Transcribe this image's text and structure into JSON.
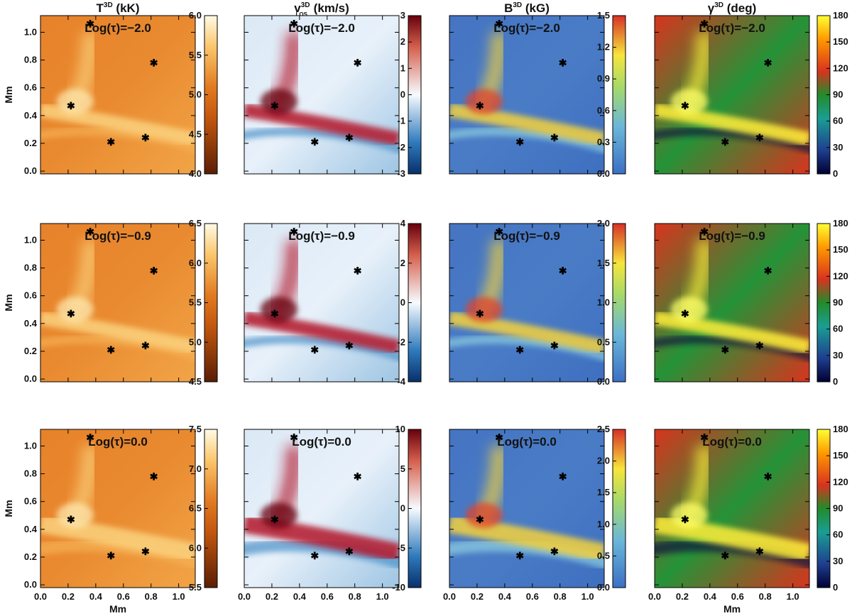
{
  "chart_data": {
    "type": "heatmap",
    "columns": [
      {
        "title_main": "T",
        "title_sup": "3D",
        "title_unit": "(kK)",
        "cmap": "temp"
      },
      {
        "title_main": "v",
        "title_sup": "3D",
        "title_sub": "LOS",
        "title_unit": "(km/s)",
        "cmap": "velocity"
      },
      {
        "title_main": "B",
        "title_sup": "3D",
        "title_unit": "(kG)",
        "cmap": "field"
      },
      {
        "title_main": "γ",
        "title_sup": "3D",
        "title_unit": "(deg)",
        "cmap": "incl"
      }
    ],
    "rows": [
      {
        "tau_label": "Log(τ)=−2.0",
        "colorbars": [
          {
            "range": [
              4.0,
              6.0
            ],
            "ticks": [
              "4.0",
              "4.5",
              "5.0",
              "5.5",
              "6.0"
            ]
          },
          {
            "range": [
              -3,
              3
            ],
            "ticks": [
              "-3",
              "-2",
              "-1",
              "0",
              "1",
              "2",
              "3"
            ]
          },
          {
            "range": [
              0.0,
              1.5
            ],
            "ticks": [
              "0.0",
              "0.3",
              "0.6",
              "0.9",
              "1.2",
              "1.5"
            ]
          },
          {
            "range": [
              0,
              180
            ],
            "ticks": [
              "0",
              "30",
              "60",
              "90",
              "120",
              "150",
              "180"
            ]
          }
        ]
      },
      {
        "tau_label": "Log(τ)=−0.9",
        "colorbars": [
          {
            "range": [
              4.5,
              6.5
            ],
            "ticks": [
              "4.5",
              "5.0",
              "5.5",
              "6.0",
              "6.5"
            ]
          },
          {
            "range": [
              -4,
              4
            ],
            "ticks": [
              "-4",
              "-2",
              "0",
              "2",
              "4"
            ]
          },
          {
            "range": [
              0.0,
              2.0
            ],
            "ticks": [
              "0.0",
              "0.5",
              "1.0",
              "1.5",
              "2.0"
            ]
          },
          {
            "range": [
              0,
              180
            ],
            "ticks": [
              "0",
              "30",
              "60",
              "90",
              "120",
              "150",
              "180"
            ]
          }
        ]
      },
      {
        "tau_label": "Log(τ)=0.0",
        "colorbars": [
          {
            "range": [
              5.5,
              7.5
            ],
            "ticks": [
              "5.5",
              "6.0",
              "6.5",
              "7.0",
              "7.5"
            ]
          },
          {
            "range": [
              -10,
              10
            ],
            "ticks": [
              "-10",
              "-5",
              "0",
              "5",
              "10"
            ]
          },
          {
            "range": [
              0.0,
              2.5
            ],
            "ticks": [
              "0.0",
              "0.5",
              "1.0",
              "1.5",
              "2.0",
              "2.5"
            ]
          },
          {
            "range": [
              0,
              180
            ],
            "ticks": [
              "0",
              "30",
              "60",
              "90",
              "120",
              "150",
              "180"
            ]
          }
        ]
      }
    ],
    "xlabel": "Mm",
    "ylabel": "Mm",
    "xlim": [
      0.0,
      1.12
    ],
    "ylim": [
      -0.02,
      1.12
    ],
    "xticks": [
      "0.0",
      "0.2",
      "0.4",
      "0.6",
      "0.8",
      "1.0"
    ],
    "yticks": [
      "0.0",
      "0.2",
      "0.4",
      "0.6",
      "0.8",
      "1.0"
    ],
    "markers": [
      {
        "x": 0.36,
        "y": 1.06
      },
      {
        "x": 0.82,
        "y": 0.78
      },
      {
        "x": 0.22,
        "y": 0.47
      },
      {
        "x": 0.76,
        "y": 0.24
      },
      {
        "x": 0.51,
        "y": 0.21
      }
    ],
    "marker_symbol": "✱",
    "colors": {
      "temp_low": "#5a1e04",
      "temp_mid": "#e27b22",
      "temp_high": "#fffbe6",
      "vel_neg": "#08306b",
      "vel_zero": "#f7fbff",
      "vel_pos": "#67000d",
      "field_low": "#3b6fc4",
      "field_mid": "#f7e53b",
      "field_high": "#d73027",
      "incl_low": "#000033",
      "incl_mid": "#238b2a",
      "incl_high": "#ffff33"
    }
  }
}
